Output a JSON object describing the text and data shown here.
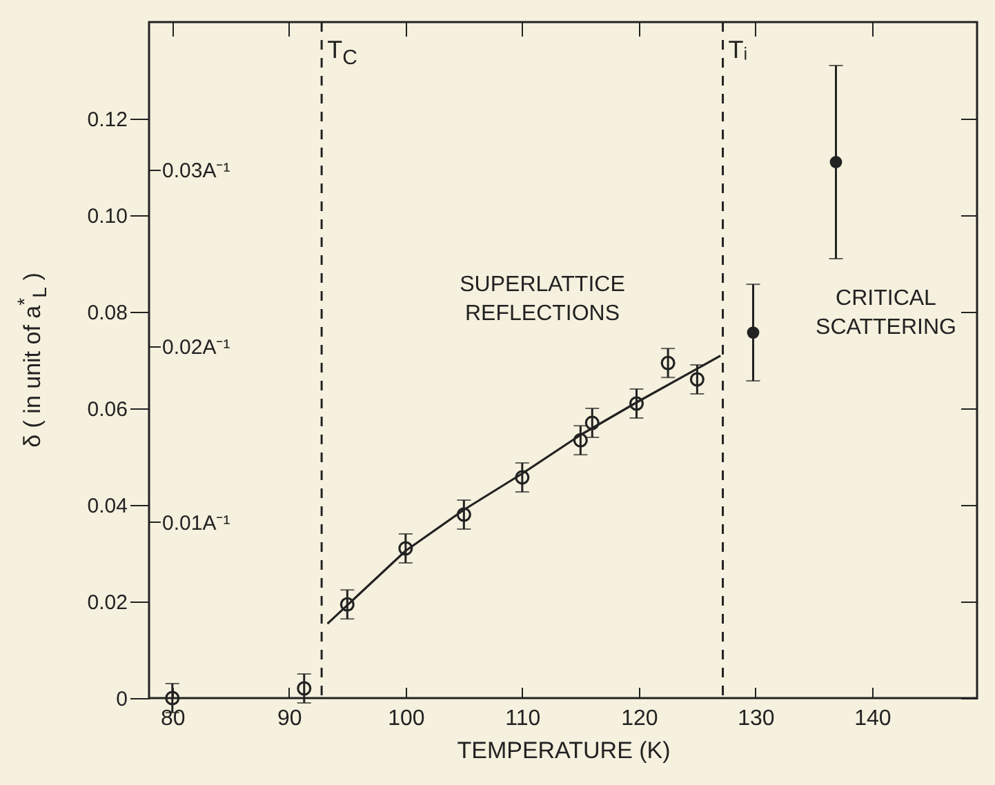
{
  "chart_data": {
    "type": "scatter",
    "xlabel": "TEMPERATURE (K)",
    "ylabel": "δ ( in unit of a$^{*}$$_{L}$ )",
    "xlim": [
      78,
      149
    ],
    "xticks": [
      80,
      90,
      100,
      110,
      120,
      130,
      140
    ],
    "ylim": [
      0,
      0.14
    ],
    "yticks": [
      0,
      0.02,
      0.04,
      0.06,
      0.08,
      {
        "value": 0.1,
        "label": "0.10"
      },
      0.12
    ],
    "y2lim": [
      0,
      0.0384
    ],
    "y2ticks": [
      {
        "value": 0.01,
        "label": "0.01A⁻¹"
      },
      {
        "value": 0.02,
        "label": "0.02A⁻¹"
      },
      {
        "value": 0.03,
        "label": "0.03A⁻¹"
      }
    ],
    "marker": "circle",
    "grid": false,
    "series": [
      {
        "color": "#222222",
        "x": [
          80,
          91.3,
          95,
          100,
          105,
          110,
          115,
          116,
          119.8,
          122.5,
          125
        ],
        "values": [
          0,
          0.002,
          0.0194,
          0.031,
          0.038,
          0.0457,
          0.0534,
          0.057,
          0.061,
          0.0694,
          0.066
        ],
        "errors": [
          0.003,
          0.003,
          0.003,
          0.003,
          0.003,
          0.003,
          0.003,
          0.003,
          0.003,
          0.003,
          0.003
        ]
      },
      {
        "color": "#222222",
        "x": [
          129.8,
          136.9
        ],
        "values": [
          0.0757,
          0.111
        ],
        "errors": [
          0.01,
          0.02
        ]
      },
      {
        "type": "line",
        "color": "#222222",
        "marker": "none",
        "x": [
          93.3,
          100,
          105,
          110,
          115,
          120,
          127
        ],
        "values": [
          0.0154,
          0.0305,
          0.039,
          0.0465,
          0.0545,
          0.0615,
          0.0709
        ]
      }
    ],
    "ref_lines": [
      {
        "axis": "x",
        "value": 92.8,
        "label": "T$_{C}$",
        "line_style": "dashed"
      },
      {
        "axis": "x",
        "value": 127.2,
        "label": "Tᵢ",
        "line_style": "dashed"
      }
    ],
    "annotations": [
      "SUPERLATTICE\nREFLECTIONS",
      "CRITICAL\nSCATTERING"
    ]
  }
}
